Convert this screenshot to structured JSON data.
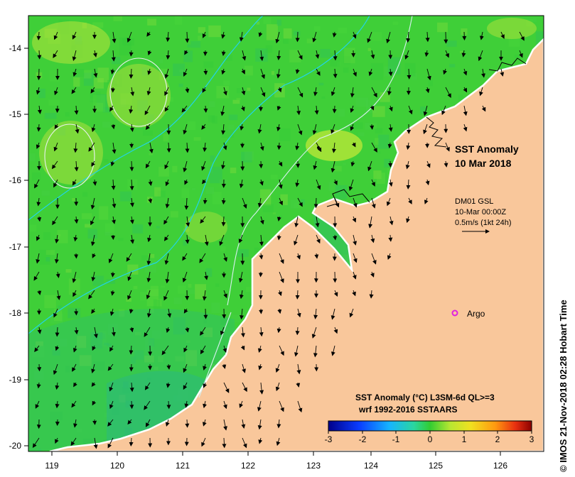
{
  "map": {
    "title": "SST Anomaly",
    "date": "10 Mar 2018",
    "vector_source": "DM01 GSL",
    "vector_time": "10-Mar 00:00Z",
    "vector_scale_label": "0.5m/s (1kt 24h)",
    "argo_label": "Argo",
    "colorbar_title": "SST Anomaly (°C) L3SM-6d QL>=3",
    "colorbar_subtitle": "wrf 1992-2016 SSTAARS",
    "credit": "© IMOS 21-Nov-2018 02:28 Hobart Time",
    "x_ticks": [
      "119",
      "120",
      "121",
      "122",
      "123",
      "124",
      "125",
      "126"
    ],
    "y_ticks": [
      "-14",
      "-15",
      "-16",
      "-17",
      "-18",
      "-19",
      "-20"
    ],
    "colorbar_ticks": [
      "-3",
      "-2",
      "-1",
      "0",
      "1",
      "2",
      "3"
    ],
    "colors": {
      "land": "#f9c79b",
      "sea_base": "#3fcf38",
      "warm": "#bde83a",
      "cool": "#2dbf7a",
      "contour": "#22d3e8",
      "argo": "#e020e0"
    }
  }
}
